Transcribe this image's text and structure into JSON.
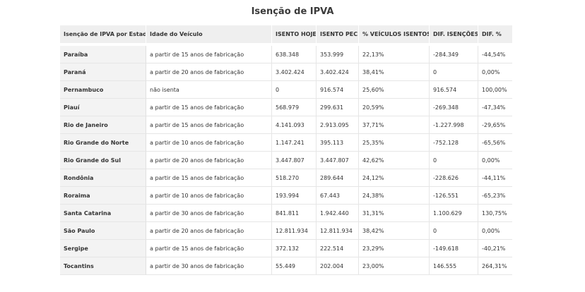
{
  "title": "Isenção de IPVA",
  "table": {
    "headers": [
      "Isenção de IPVA por Estado",
      "Idade do Veículo",
      "ISENTO HOJE",
      "ISENTO PEC",
      "% VEÍCULOS ISENTOS",
      "DIF. ISENÇÕES",
      "DIF. %"
    ],
    "rows": [
      [
        "Paraíba",
        "a partir de 15 anos de fabricação",
        "638.348",
        "353.999",
        "22,13%",
        "-284.349",
        "-44,54%"
      ],
      [
        "Paraná",
        "a partir de 20 anos de fabricação",
        "3.402.424",
        "3.402.424",
        "38,41%",
        "0",
        "0,00%"
      ],
      [
        "Pernambuco",
        "não isenta",
        "0",
        "916.574",
        "25,60%",
        "916.574",
        "100,00%"
      ],
      [
        "Piauí",
        "a partir de 15 anos de fabricação",
        "568.979",
        "299.631",
        "20,59%",
        "-269.348",
        "-47,34%"
      ],
      [
        "Rio de Janeiro",
        "a partir de 15 anos de fabricação",
        "4.141.093",
        "2.913.095",
        "37,71%",
        "-1.227.998",
        "-29,65%"
      ],
      [
        "Rio Grande do Norte",
        "a partir de 10 anos de fabricação",
        "1.147.241",
        "395.113",
        "25,35%",
        "-752.128",
        "-65,56%"
      ],
      [
        "Rio Grande do Sul",
        "a partir de 20 anos de fabricação",
        "3.447.807",
        "3.447.807",
        "42,62%",
        "0",
        "0,00%"
      ],
      [
        "Rondônia",
        "a partir de 15 anos de fabricação",
        "518.270",
        "289.644",
        "24,12%",
        "-228.626",
        "-44,11%"
      ],
      [
        "Roraima",
        "a partir de 10 anos de fabricação",
        "193.994",
        "67.443",
        "24,38%",
        "-126.551",
        "-65,23%"
      ],
      [
        "Santa Catarina",
        "a partir de 30 anos de fabricação",
        "841.811",
        "1.942.440",
        "31,31%",
        "1.100.629",
        "130,75%"
      ],
      [
        "São Paulo",
        "a partir de 20 anos de fabricação",
        "12.811.934",
        "12.811.934",
        "38,42%",
        "0",
        "0,00%"
      ],
      [
        "Sergipe",
        "a partir de 15 anos de fabricação",
        "372.132",
        "222.514",
        "23,29%",
        "-149.618",
        "-40,21%"
      ],
      [
        "Tocantins",
        "a partir de 30 anos de fabricação",
        "55.449",
        "202.004",
        "23,00%",
        "146.555",
        "264,31%"
      ]
    ]
  }
}
